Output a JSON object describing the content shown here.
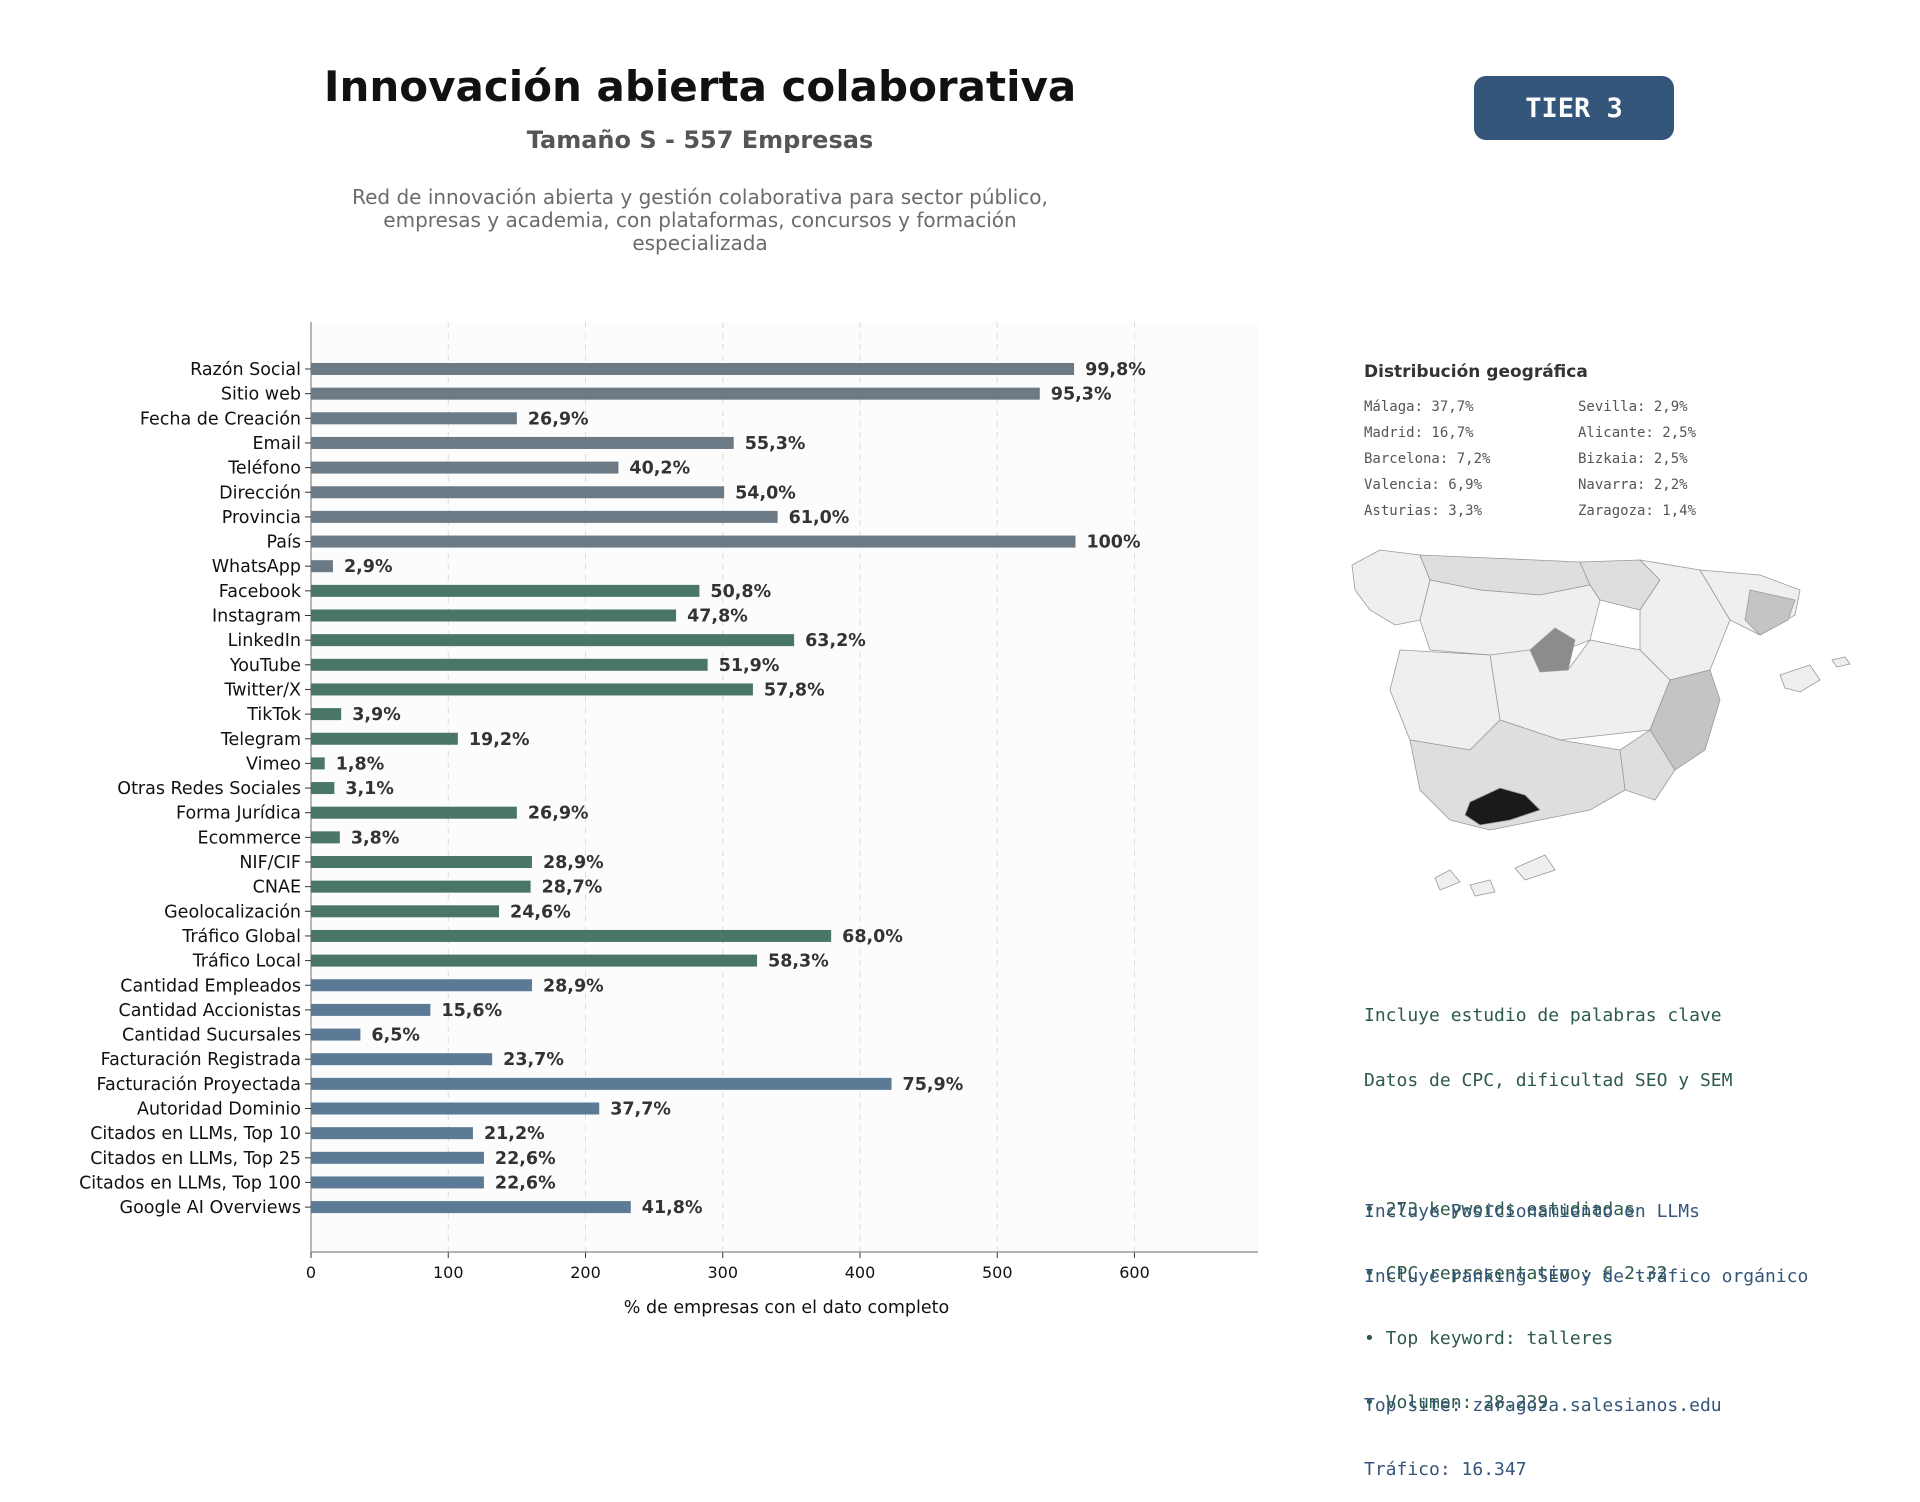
{
  "header": {
    "title": "Innovación abierta colaborativa",
    "subtitle": "Tamaño S - 557 Empresas",
    "description_lines": [
      "Red de innovación abierta y gestión colaborativa para sector público,",
      "empresas y academia, con plataformas, concursos y formación",
      "especializada"
    ],
    "tier": "TIER 3"
  },
  "colors": {
    "group_basic": "#6c7a86",
    "group_social": "#4a7665",
    "group_business": "#5a7a96",
    "badge": "#34567a",
    "keyword_text": "#2e5a48",
    "llm_text": "#34567a"
  },
  "chart_data": {
    "type": "bar",
    "orientation": "horizontal",
    "xlabel": "% de empresas con el dato completo",
    "xlim": [
      0,
      690
    ],
    "xticks": [
      0,
      100,
      200,
      300,
      400,
      500,
      600
    ],
    "grid": "vertical dashed",
    "bars": [
      {
        "category": "Razón Social",
        "value": 556,
        "label": "99,8%",
        "group": "basic"
      },
      {
        "category": "Sitio web",
        "value": 531,
        "label": "95,3%",
        "group": "basic"
      },
      {
        "category": "Fecha de Creación",
        "value": 150,
        "label": "26,9%",
        "group": "basic"
      },
      {
        "category": "Email",
        "value": 308,
        "label": "55,3%",
        "group": "basic"
      },
      {
        "category": "Teléfono",
        "value": 224,
        "label": "40,2%",
        "group": "basic"
      },
      {
        "category": "Dirección",
        "value": 301,
        "label": "54,0%",
        "group": "basic"
      },
      {
        "category": "Provincia",
        "value": 340,
        "label": "61,0%",
        "group": "basic"
      },
      {
        "category": "País",
        "value": 557,
        "label": "100%",
        "group": "basic"
      },
      {
        "category": "WhatsApp",
        "value": 16,
        "label": "2,9%",
        "group": "basic"
      },
      {
        "category": "Facebook",
        "value": 283,
        "label": "50,8%",
        "group": "social"
      },
      {
        "category": "Instagram",
        "value": 266,
        "label": "47,8%",
        "group": "social"
      },
      {
        "category": "LinkedIn",
        "value": 352,
        "label": "63,2%",
        "group": "social"
      },
      {
        "category": "YouTube",
        "value": 289,
        "label": "51,9%",
        "group": "social"
      },
      {
        "category": "Twitter/X",
        "value": 322,
        "label": "57,8%",
        "group": "social"
      },
      {
        "category": "TikTok",
        "value": 22,
        "label": "3,9%",
        "group": "social"
      },
      {
        "category": "Telegram",
        "value": 107,
        "label": "19,2%",
        "group": "social"
      },
      {
        "category": "Vimeo",
        "value": 10,
        "label": "1,8%",
        "group": "social"
      },
      {
        "category": "Otras Redes Sociales",
        "value": 17,
        "label": "3,1%",
        "group": "social"
      },
      {
        "category": "Forma Jurídica",
        "value": 150,
        "label": "26,9%",
        "group": "social"
      },
      {
        "category": "Ecommerce",
        "value": 21,
        "label": "3,8%",
        "group": "social"
      },
      {
        "category": "NIF/CIF",
        "value": 161,
        "label": "28,9%",
        "group": "social"
      },
      {
        "category": "CNAE",
        "value": 160,
        "label": "28,7%",
        "group": "social"
      },
      {
        "category": "Geolocalización",
        "value": 137,
        "label": "24,6%",
        "group": "social"
      },
      {
        "category": "Tráfico Global",
        "value": 379,
        "label": "68,0%",
        "group": "social"
      },
      {
        "category": "Tráfico Local",
        "value": 325,
        "label": "58,3%",
        "group": "social"
      },
      {
        "category": "Cantidad Empleados",
        "value": 161,
        "label": "28,9%",
        "group": "business"
      },
      {
        "category": "Cantidad Accionistas",
        "value": 87,
        "label": "15,6%",
        "group": "business"
      },
      {
        "category": "Cantidad Sucursales",
        "value": 36,
        "label": "6,5%",
        "group": "business"
      },
      {
        "category": "Facturación Registrada",
        "value": 132,
        "label": "23,7%",
        "group": "business"
      },
      {
        "category": "Facturación Proyectada",
        "value": 423,
        "label": "75,9%",
        "group": "business"
      },
      {
        "category": "Autoridad Dominio",
        "value": 210,
        "label": "37,7%",
        "group": "business"
      },
      {
        "category": "Citados en LLMs, Top 10",
        "value": 118,
        "label": "21,2%",
        "group": "business"
      },
      {
        "category": "Citados en LLMs, Top 25",
        "value": 126,
        "label": "22,6%",
        "group": "business"
      },
      {
        "category": "Citados en LLMs, Top 100",
        "value": 126,
        "label": "22,6%",
        "group": "business"
      },
      {
        "category": "Google AI Overviews",
        "value": 233,
        "label": "41,8%",
        "group": "business"
      }
    ]
  },
  "geo": {
    "title": "Distribución geográfica",
    "items": [
      "Málaga: 37,7%",
      "Sevilla: 2,9%",
      "Madrid: 16,7%",
      "Alicante: 2,5%",
      "Barcelona: 7,2%",
      "Bizkaia: 2,5%",
      "Valencia: 6,9%",
      "Navarra: 2,2%",
      "Asturias: 3,3%",
      "Zaragoza: 1,4%"
    ]
  },
  "keywords": {
    "lines": [
      "Incluye estudio de palabras clave",
      "Datos de CPC, dificultad SEO y SEM",
      "",
      "• 273 keywords estudiadas",
      "• CPC representativo: € 2.32",
      "• Top keyword: talleres",
      "• Volumen: 28.239"
    ]
  },
  "llm": {
    "lines": [
      "Incluye Posicionamiento en LLMs",
      "Incluye ranking SEO y de tráfico orgánico",
      "",
      "Top site: zaragoza.salesianos.edu",
      "Tráfico: 16.347"
    ]
  },
  "map": {
    "shading": {
      "malaga": "#1a1a1a",
      "madrid": "#8c8c8c",
      "valencia": "#c4c4c4",
      "barcelona": "#c4c4c4",
      "mid": "#dedede",
      "light": "#efefef"
    }
  }
}
